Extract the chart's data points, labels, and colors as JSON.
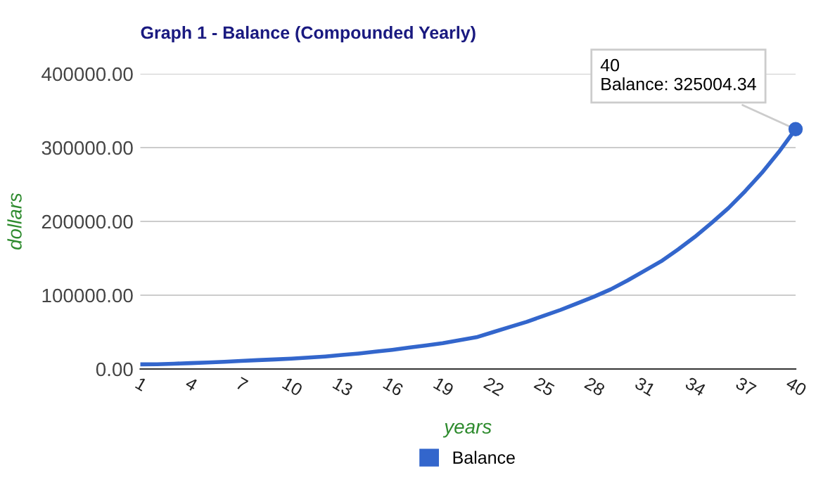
{
  "chart_data": {
    "type": "line",
    "title": "Graph 1 - Balance (Compounded Yearly)",
    "xlabel": "years",
    "ylabel": "dollars",
    "categories": [
      "1",
      null,
      null,
      "4",
      null,
      null,
      "7",
      null,
      null,
      "10",
      null,
      null,
      "13",
      null,
      null,
      "16",
      null,
      null,
      "19",
      null,
      null,
      "22",
      null,
      null,
      "25",
      null,
      null,
      "28",
      null,
      null,
      "31",
      null,
      null,
      "34",
      null,
      null,
      "37",
      null,
      null,
      "40"
    ],
    "series": [
      {
        "name": "Balance",
        "color": "#3366cc",
        "marker": "none",
        "values": [
          6300,
          6500,
          7200,
          8000,
          8800,
          9800,
          11000,
          12000,
          13000,
          14000,
          15500,
          17000,
          19000,
          21000,
          23500,
          26000,
          29000,
          32000,
          35000,
          39000,
          43000,
          50000,
          57000,
          64000,
          72000,
          80000,
          89000,
          98000,
          108000,
          120000,
          133000,
          146000,
          162000,
          179000,
          198000,
          218000,
          241000,
          266000,
          294000,
          325004.34
        ]
      },
      {
        "type": "scatter",
        "color": "#3366cc",
        "marker": "circle",
        "x": [
          "40"
        ],
        "values": [
          325004.34
        ]
      }
    ],
    "ylim": [
      0,
      400000
    ],
    "yticks": [
      {
        "value": 0,
        "label": "0.00"
      },
      {
        "value": 100000,
        "label": "100000.00"
      },
      {
        "value": 200000,
        "label": "200000.00"
      },
      {
        "value": 300000,
        "label": "300000.00"
      },
      {
        "value": 400000,
        "label": "400000.00"
      }
    ],
    "annotations": [
      {
        "text": "40\nBalance: 325004.34",
        "x": "40",
        "y": 325004.34
      }
    ],
    "grid": "y",
    "legend": "bottom",
    "line_style": "solid"
  }
}
